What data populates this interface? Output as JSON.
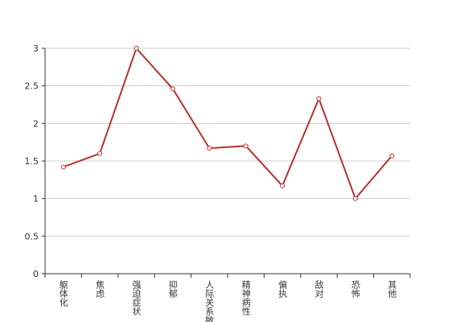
{
  "chart_data": {
    "type": "line",
    "categories": [
      "躯体化",
      "焦虑",
      "强迫症状",
      "抑郁",
      "人际关系敏感",
      "精神病性",
      "偏执",
      "敌对",
      "恐怖",
      "其他"
    ],
    "series": [
      {
        "color": "#b83232",
        "values": [
          1.42,
          1.6,
          3.0,
          2.46,
          1.67,
          1.7,
          1.17,
          2.33,
          1.0,
          1.57
        ]
      }
    ],
    "ylim": [
      0,
      3
    ],
    "yticks": [
      0,
      0.5,
      1,
      1.5,
      2,
      2.5,
      3
    ],
    "grid": true
  }
}
